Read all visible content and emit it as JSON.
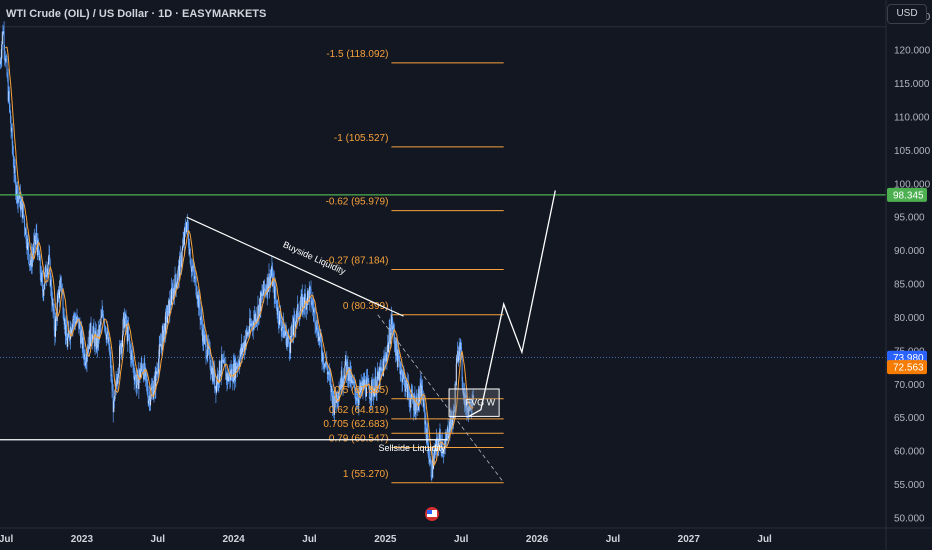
{
  "header": {
    "title": "WTI Crude (OIL) / US Dollar · 1D · EASYMARKETS",
    "currency": "USD"
  },
  "colors": {
    "background": "#131722",
    "grid": "#2a2e39",
    "up_candle": "#5b9cf6",
    "ma_line": "#f7a23b",
    "fib": "#f7a23b",
    "green_level": "#4caf50",
    "white": "#ffffff",
    "last_price_bg": "#2962ff",
    "ma_price_bg": "#f57c00"
  },
  "chart_data": {
    "type": "candlestick",
    "price_axis_ticks": [
      125,
      120,
      115,
      110,
      105,
      100,
      95,
      90,
      85,
      80,
      75,
      70,
      65,
      60,
      55,
      50
    ],
    "price_axis_labels": [
      "125.000",
      "120.000",
      "115.000",
      "110.000",
      "105.000",
      "100.000",
      "95.000",
      "90.000",
      "85.000",
      "80.000",
      "75.000",
      "70.000",
      "65.000",
      "60.000",
      "55.000",
      "50.000"
    ],
    "ylim": [
      48.5,
      127.5
    ],
    "time_axis": [
      {
        "label": "Jul",
        "t": 2022.5
      },
      {
        "label": "2023",
        "t": 2023.0
      },
      {
        "label": "Jul",
        "t": 2023.5
      },
      {
        "label": "2024",
        "t": 2024.0
      },
      {
        "label": "Jul",
        "t": 2024.5
      },
      {
        "label": "2025",
        "t": 2025.0
      },
      {
        "label": "Jul",
        "t": 2025.5
      },
      {
        "label": "2026",
        "t": 2026.0
      },
      {
        "label": "Jul",
        "t": 2026.5
      },
      {
        "label": "2027",
        "t": 2027.0
      },
      {
        "label": "Jul",
        "t": 2027.5
      }
    ],
    "xlim": [
      2022.46,
      2028.3
    ],
    "price_path": [
      [
        2022.46,
        118
      ],
      [
        2022.48,
        123.5
      ],
      [
        2022.52,
        112
      ],
      [
        2022.56,
        100
      ],
      [
        2022.61,
        96
      ],
      [
        2022.66,
        88
      ],
      [
        2022.7,
        92
      ],
      [
        2022.74,
        84
      ],
      [
        2022.78,
        89
      ],
      [
        2022.82,
        78
      ],
      [
        2022.86,
        86
      ],
      [
        2022.9,
        76
      ],
      [
        2022.94,
        80
      ],
      [
        2022.98,
        79
      ],
      [
        2023.02,
        74
      ],
      [
        2023.06,
        78
      ],
      [
        2023.1,
        76
      ],
      [
        2023.14,
        81
      ],
      [
        2023.18,
        75
      ],
      [
        2023.21,
        66
      ],
      [
        2023.24,
        73
      ],
      [
        2023.28,
        80
      ],
      [
        2023.32,
        75
      ],
      [
        2023.36,
        70
      ],
      [
        2023.4,
        73
      ],
      [
        2023.44,
        68
      ],
      [
        2023.48,
        70
      ],
      [
        2023.52,
        76
      ],
      [
        2023.56,
        80
      ],
      [
        2023.6,
        84
      ],
      [
        2023.64,
        87
      ],
      [
        2023.67,
        91
      ],
      [
        2023.69,
        94.5
      ],
      [
        2023.72,
        88
      ],
      [
        2023.76,
        84
      ],
      [
        2023.8,
        77
      ],
      [
        2023.84,
        74
      ],
      [
        2023.88,
        70
      ],
      [
        2023.92,
        73
      ],
      [
        2023.96,
        71
      ],
      [
        2024.0,
        72
      ],
      [
        2024.04,
        74
      ],
      [
        2024.08,
        77
      ],
      [
        2024.12,
        79
      ],
      [
        2024.16,
        81
      ],
      [
        2024.2,
        84
      ],
      [
        2024.25,
        86.5
      ],
      [
        2024.29,
        81
      ],
      [
        2024.33,
        78
      ],
      [
        2024.37,
        76
      ],
      [
        2024.41,
        80
      ],
      [
        2024.45,
        82
      ],
      [
        2024.5,
        83.5
      ],
      [
        2024.54,
        80
      ],
      [
        2024.58,
        75
      ],
      [
        2024.62,
        72
      ],
      [
        2024.66,
        67
      ],
      [
        2024.7,
        70
      ],
      [
        2024.74,
        73
      ],
      [
        2024.78,
        70
      ],
      [
        2024.82,
        68
      ],
      [
        2024.86,
        70
      ],
      [
        2024.9,
        69
      ],
      [
        2024.94,
        70
      ],
      [
        2024.98,
        72
      ],
      [
        2025.02,
        76
      ],
      [
        2025.04,
        79.5
      ],
      [
        2025.08,
        74
      ],
      [
        2025.12,
        71
      ],
      [
        2025.16,
        68
      ],
      [
        2025.2,
        67
      ],
      [
        2025.24,
        69
      ],
      [
        2025.27,
        63
      ],
      [
        2025.3,
        57
      ],
      [
        2025.33,
        60
      ],
      [
        2025.36,
        62
      ],
      [
        2025.39,
        60
      ],
      [
        2025.42,
        64
      ],
      [
        2025.45,
        65
      ],
      [
        2025.47,
        73
      ],
      [
        2025.49,
        77
      ],
      [
        2025.51,
        70
      ],
      [
        2025.53,
        67
      ],
      [
        2025.55,
        66.5
      ],
      [
        2025.58,
        69
      ]
    ],
    "last_price": 73.98,
    "last_price_label": "73.980",
    "ma_price": 72.563,
    "ma_price_label": "72.563",
    "green_level": 98.345,
    "green_level_label": "98.345",
    "fib_levels": [
      {
        "label": "-1.5 (118.092)",
        "price": 118.092
      },
      {
        "label": "-1 (105.527)",
        "price": 105.527
      },
      {
        "label": "-0.62 (95.979)",
        "price": 95.979
      },
      {
        "label": "-0.27 (87.184)",
        "price": 87.184
      },
      {
        "label": "0 (80.399)",
        "price": 80.399
      },
      {
        "label": "0.5 (67.835)",
        "price": 67.835
      },
      {
        "label": "0.62 (64.819)",
        "price": 64.819
      },
      {
        "label": "0.705 (62.683)",
        "price": 62.683
      },
      {
        "label": "0.79 (60.547)",
        "price": 60.547
      },
      {
        "label": "1 (55.270)",
        "price": 55.27
      }
    ],
    "fib_start_t": 2025.04,
    "fib_end_t": 2025.78,
    "buyside_trendline": [
      [
        2023.69,
        95.0
      ],
      [
        2025.12,
        80.2
      ]
    ],
    "sellside_line": [
      [
        2022.46,
        61.7
      ],
      [
        2025.41,
        61.7
      ]
    ],
    "fib_anchor_dashed": [
      [
        2024.95,
        80.4
      ],
      [
        2025.78,
        55.3
      ]
    ],
    "projection_path": [
      [
        2025.55,
        65.2
      ],
      [
        2025.63,
        66.2
      ],
      [
        2025.78,
        82.0
      ],
      [
        2025.9,
        74.8
      ],
      [
        2026.12,
        99.0
      ]
    ],
    "fvg_box": {
      "t0": 2025.42,
      "t1": 2025.75,
      "p0": 65.2,
      "p1": 69.3,
      "label": "FVG W"
    },
    "annotations": {
      "buyside": "Buyside Liquidity",
      "sellside": "Sellside Liquidity"
    }
  }
}
